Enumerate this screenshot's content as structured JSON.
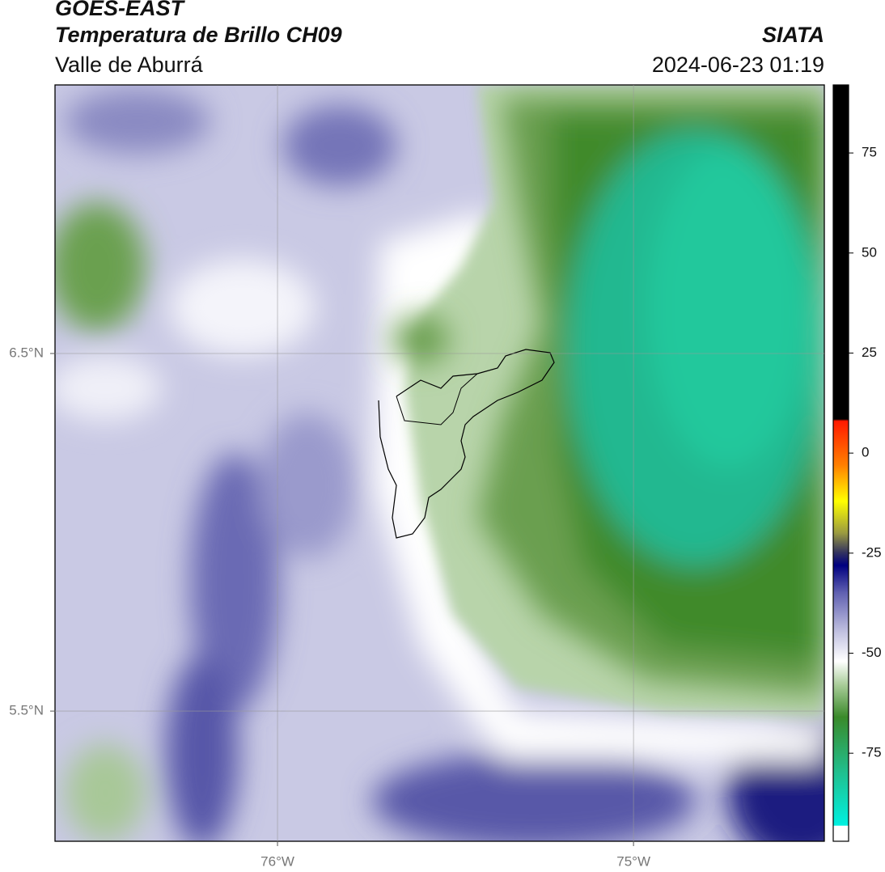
{
  "header": {
    "title": "GOES-EAST",
    "subtitle": "Temperatura de Brillo CH09",
    "source": "SIATA",
    "region": "Valle de Aburrá",
    "datetime": "2024-06-23 01:19"
  },
  "map": {
    "xlim": [
      -76.625,
      -74.464
    ],
    "ylim": [
      5.136,
      7.251
    ],
    "xticks": [
      {
        "value": -76,
        "label": "76°W"
      },
      {
        "value": -75,
        "label": "75°W"
      }
    ],
    "yticks": [
      {
        "value": 6.5,
        "label": "6.5°N"
      },
      {
        "value": 5.5,
        "label": "5.5°N"
      }
    ],
    "grid": true
  },
  "colorbar": {
    "lim": [
      -97,
      92
    ],
    "ticks": [
      75,
      50,
      25,
      0,
      -25,
      -50,
      -75
    ],
    "stops": [
      [
        -97,
        "#ffffff"
      ],
      [
        -93.2,
        "#ffffff"
      ],
      [
        -93,
        "#00f0e0"
      ],
      [
        -80,
        "#20c090"
      ],
      [
        -66,
        "#3a8a2a"
      ],
      [
        -58,
        "#a8cc98"
      ],
      [
        -52,
        "#ffffff"
      ],
      [
        -45,
        "#c4c4e2"
      ],
      [
        -35,
        "#6262b2"
      ],
      [
        -28,
        "#000080"
      ],
      [
        -25,
        "#303060"
      ],
      [
        -20,
        "#9a9a40"
      ],
      [
        -12,
        "#ffff00"
      ],
      [
        -3,
        "#ff8000"
      ],
      [
        8,
        "#ff1a00"
      ],
      [
        8.5,
        "#000000"
      ],
      [
        92,
        "#000000"
      ]
    ]
  }
}
